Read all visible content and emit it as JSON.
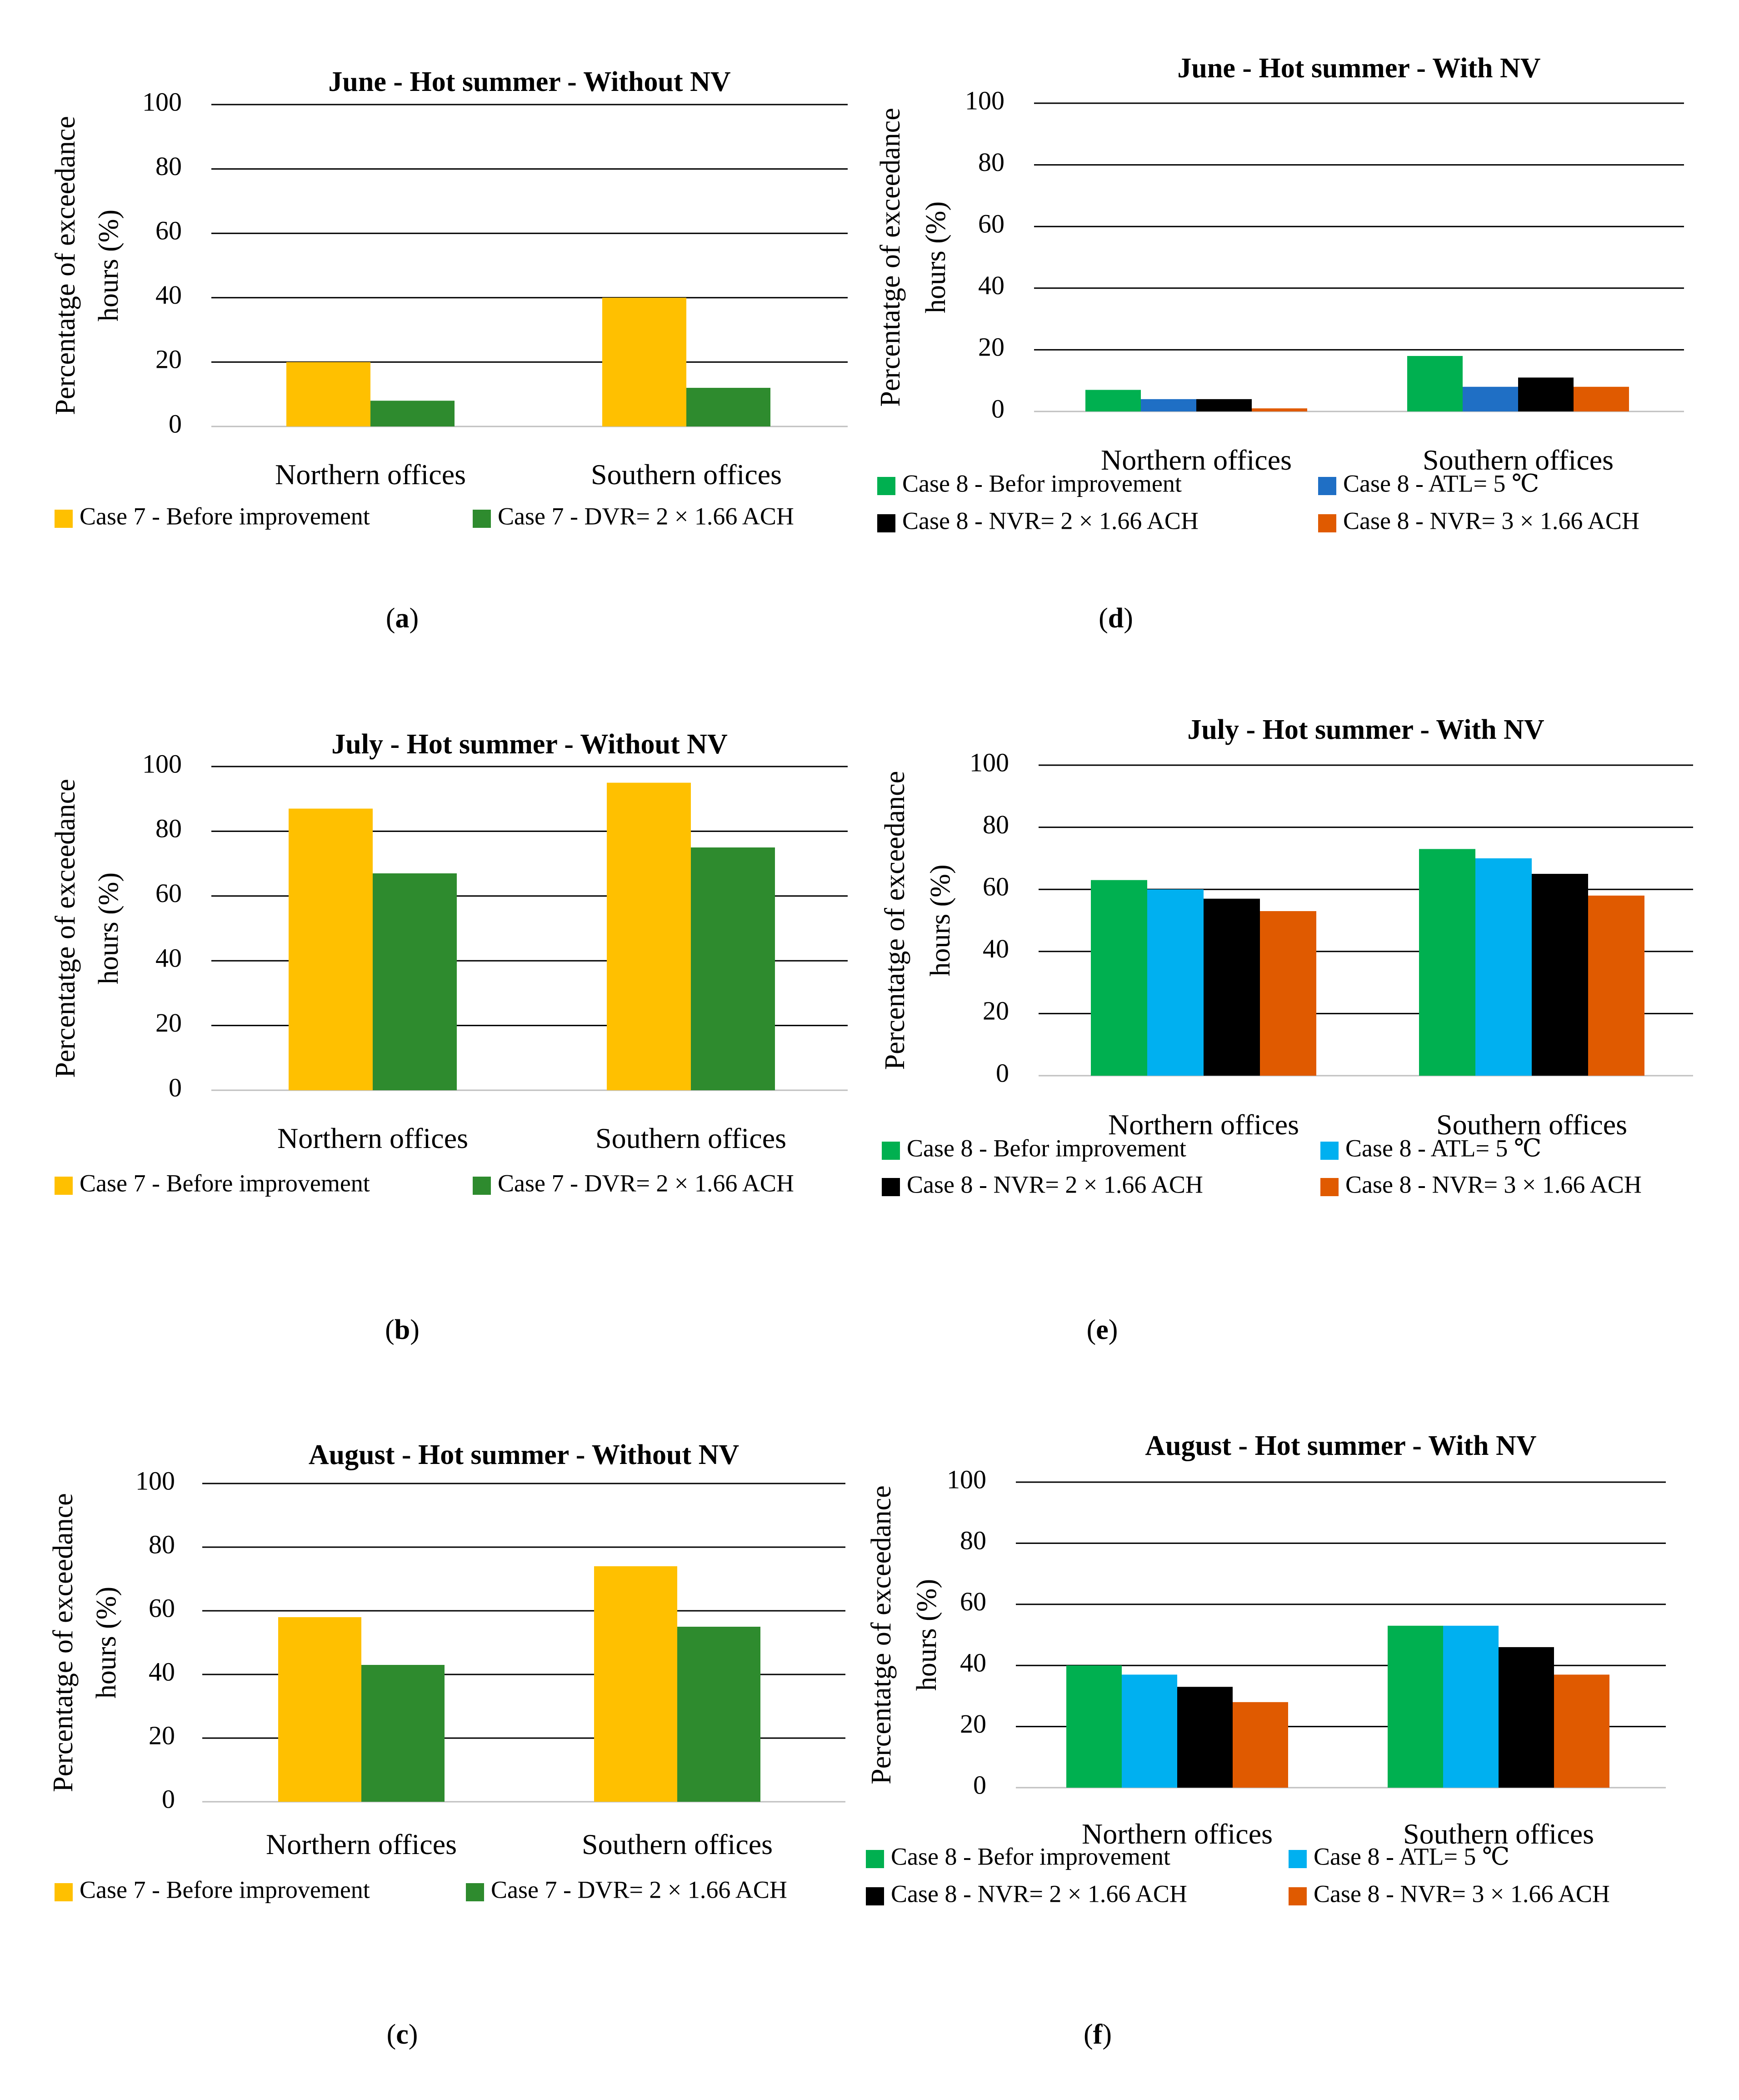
{
  "figure": {
    "panels": [
      {
        "id": "a",
        "caption_open": "(",
        "caption_letter": "a",
        "caption_close": ")"
      },
      {
        "id": "b",
        "caption_open": "(",
        "caption_letter": "b",
        "caption_close": ")"
      },
      {
        "id": "c",
        "caption_open": "(",
        "caption_letter": "c",
        "caption_close": ")"
      },
      {
        "id": "d",
        "caption_open": "(",
        "caption_letter": "d",
        "caption_close": ")"
      },
      {
        "id": "e",
        "caption_open": "(",
        "caption_letter": "e",
        "caption_close": ")"
      },
      {
        "id": "f",
        "caption_open": "(",
        "caption_letter": "f",
        "caption_close": ")"
      }
    ]
  },
  "chart_data": [
    {
      "id": "a",
      "type": "bar",
      "title": "June - Hot summer - Without NV",
      "ylabel_line1": "Percentatge of exceedance",
      "ylabel_line2": "hours (%)",
      "ylim": [
        0,
        100
      ],
      "yticks": [
        0,
        20,
        40,
        60,
        80,
        100
      ],
      "categories": [
        "Northern offices",
        "Southern offices"
      ],
      "series": [
        {
          "name": "Case 7 - Before improvement",
          "color": "#FFC000",
          "values": [
            20,
            40
          ]
        },
        {
          "name": "Case 7 - DVR= 2 × 1.66 ACH",
          "color": "#2E8B2E",
          "values": [
            8,
            12
          ]
        }
      ],
      "legend_position": "bottom"
    },
    {
      "id": "b",
      "type": "bar",
      "title": "July - Hot summer - Without NV",
      "ylabel_line1": "Percentatge of exceedance",
      "ylabel_line2": "hours (%)",
      "ylim": [
        0,
        100
      ],
      "yticks": [
        0,
        20,
        40,
        60,
        80,
        100
      ],
      "categories": [
        "Northern offices",
        "Southern offices"
      ],
      "series": [
        {
          "name": "Case 7 - Before improvement",
          "color": "#FFC000",
          "values": [
            87,
            95
          ]
        },
        {
          "name": "Case 7 - DVR= 2 × 1.66 ACH",
          "color": "#2E8B2E",
          "values": [
            67,
            75
          ]
        }
      ],
      "legend_position": "bottom"
    },
    {
      "id": "c",
      "type": "bar",
      "title": "August - Hot summer - Without NV",
      "ylabel_line1": "Percentatge of exceedance",
      "ylabel_line2": "hours (%)",
      "ylim": [
        0,
        100
      ],
      "yticks": [
        0,
        20,
        40,
        60,
        80,
        100
      ],
      "categories": [
        "Northern offices",
        "Southern offices"
      ],
      "series": [
        {
          "name": "Case 7 - Before improvement",
          "color": "#FFC000",
          "values": [
            58,
            74
          ]
        },
        {
          "name": "Case 7 - DVR= 2 × 1.66 ACH",
          "color": "#2E8B2E",
          "values": [
            43,
            55
          ]
        }
      ],
      "legend_position": "bottom"
    },
    {
      "id": "d",
      "type": "bar",
      "title": "June - Hot summer - With NV",
      "ylabel_line1": "Percentatge of exceedance",
      "ylabel_line2": "hours (%)",
      "ylim": [
        0,
        100
      ],
      "yticks": [
        0,
        20,
        40,
        60,
        80,
        100
      ],
      "categories": [
        "Northern offices",
        "Southern offices"
      ],
      "series": [
        {
          "name": "Case 8 - Befor improvement",
          "color": "#00B050",
          "values": [
            7,
            18
          ]
        },
        {
          "name": "Case 8 - ATL= 5 ℃",
          "color": "#1F6FC5",
          "values": [
            4,
            8
          ]
        },
        {
          "name": "Case 8 - NVR= 2 × 1.66 ACH",
          "color": "#000000",
          "values": [
            4,
            11
          ]
        },
        {
          "name": "Case 8 - NVR= 3 × 1.66 ACH",
          "color": "#E05A00",
          "values": [
            1,
            8
          ]
        }
      ],
      "legend_position": "bottom"
    },
    {
      "id": "e",
      "type": "bar",
      "title": "July - Hot summer - With NV",
      "ylabel_line1": "Percentatge of exceedance",
      "ylabel_line2": "hours (%)",
      "ylim": [
        0,
        100
      ],
      "yticks": [
        0,
        20,
        40,
        60,
        80,
        100
      ],
      "categories": [
        "Northern offices",
        "Southern offices"
      ],
      "series": [
        {
          "name": "Case 8 - Befor improvement",
          "color": "#00B050",
          "values": [
            63,
            73
          ]
        },
        {
          "name": "Case 8 - ATL= 5 ℃",
          "color": "#00B0F0",
          "values": [
            60,
            70
          ]
        },
        {
          "name": "Case 8 - NVR= 2 × 1.66 ACH",
          "color": "#000000",
          "values": [
            57,
            65
          ]
        },
        {
          "name": "Case 8 - NVR= 3 × 1.66 ACH",
          "color": "#E05A00",
          "values": [
            53,
            58
          ]
        }
      ],
      "legend_position": "bottom"
    },
    {
      "id": "f",
      "type": "bar",
      "title": "August - Hot summer - With NV",
      "ylabel_line1": "Percentatge of exceedance",
      "ylabel_line2": "hours (%)",
      "ylim": [
        0,
        100
      ],
      "yticks": [
        0,
        20,
        40,
        60,
        80,
        100
      ],
      "categories": [
        "Northern offices",
        "Southern offices"
      ],
      "series": [
        {
          "name": "Case 8 - Befor improvement",
          "color": "#00B050",
          "values": [
            40,
            53
          ]
        },
        {
          "name": "Case 8 - ATL= 5 ℃",
          "color": "#00B0F0",
          "values": [
            37,
            53
          ]
        },
        {
          "name": "Case 8 - NVR= 2 × 1.66 ACH",
          "color": "#000000",
          "values": [
            33,
            46
          ]
        },
        {
          "name": "Case 8 - NVR= 3 × 1.66 ACH",
          "color": "#E05A00",
          "values": [
            28,
            37
          ]
        }
      ],
      "legend_position": "bottom"
    }
  ]
}
